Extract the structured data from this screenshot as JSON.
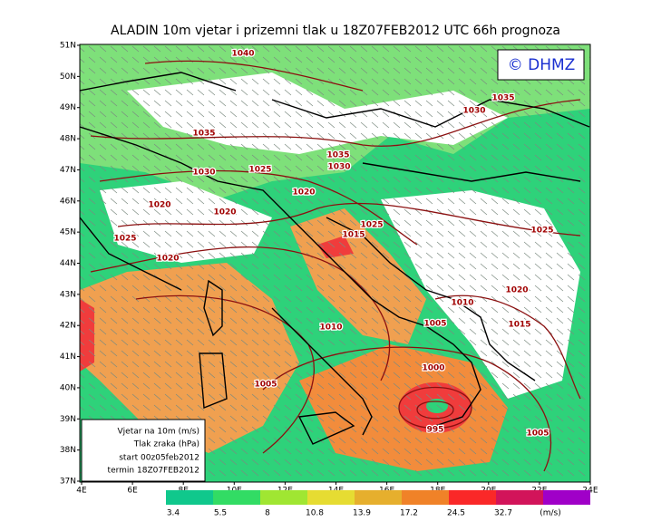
{
  "header": {
    "title": "ALADIN  10m  vjetar  i  prizemni  tlak  u  18Z07FEB2012  UTC  66h  prognoza"
  },
  "logo": "© DHMZ",
  "lat_labels": [
    "51N",
    "50N",
    "49N",
    "48N",
    "47N",
    "46N",
    "45N",
    "44N",
    "43N",
    "42N",
    "41N",
    "40N",
    "39N",
    "38N",
    "37N"
  ],
  "lon_labels": [
    "4E",
    "6E",
    "8E",
    "10E",
    "12E",
    "14E",
    "16E",
    "18E",
    "20E",
    "22E",
    "24E"
  ],
  "legend": [
    "Vjetar na 10m (m/s)",
    "Tlak zraka (hPa)",
    "start 00z05feb2012",
    "termin 18Z07FEB2012"
  ],
  "colorbar": {
    "values": [
      3.4,
      5.5,
      8,
      10.8,
      13.9,
      17.2,
      24.5,
      32.7
    ],
    "unit": "(m/s)"
  },
  "isobars": [
    1040,
    1035,
    1030,
    1035,
    1035,
    1030,
    1030,
    1025,
    1020,
    1020,
    1020,
    1025,
    1015,
    1025,
    1025,
    1020,
    1020,
    1010,
    1005,
    1015,
    1010,
    1000,
    1005,
    995,
    1005
  ]
}
